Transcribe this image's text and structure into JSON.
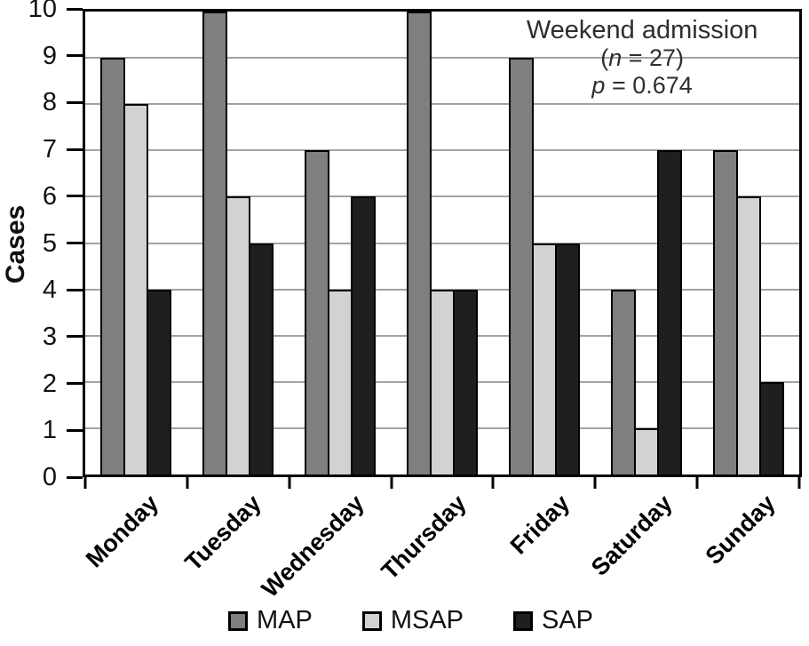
{
  "chart_data": {
    "type": "bar",
    "title": "",
    "xlabel": "",
    "ylabel": "Cases",
    "categories": [
      "Monday",
      "Tuesday",
      "Wednesday",
      "Thursday",
      "Friday",
      "Saturday",
      "Sunday"
    ],
    "series": [
      {
        "name": "MAP",
        "color": "#7f7f7f",
        "values": [
          9,
          10,
          7,
          10,
          9,
          4,
          7
        ]
      },
      {
        "name": "MSAP",
        "color": "#d2d2d2",
        "values": [
          8,
          6,
          4,
          4,
          5,
          1,
          6
        ]
      },
      {
        "name": "SAP",
        "color": "#1f1f1f",
        "values": [
          4,
          5,
          6,
          4,
          5,
          7,
          2
        ]
      }
    ],
    "ylim": [
      0,
      10
    ],
    "ytick_step": 1,
    "grid": "horizontal-gridlines-at-each-integer",
    "legend_position": "bottom-center",
    "annotation": {
      "line1": "Weekend admission",
      "line2": {
        "pre": "(",
        "var": "n",
        "post": " = 27)"
      },
      "line3": {
        "pre": "",
        "var": "p",
        "post": " = 0.674"
      }
    },
    "colors": {
      "background": "#ffffff",
      "axis": "#000000",
      "gridline": "#a3a3a3",
      "annotation_text": "#2e2e2e"
    }
  }
}
